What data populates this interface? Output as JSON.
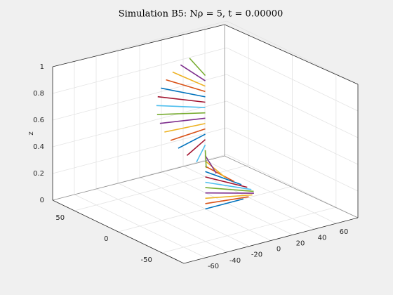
{
  "chart_data": {
    "type": "line3d",
    "title": "Simulation B5:  Nρ = 5, t = 0.00000",
    "zlabel": "z",
    "xlim": [
      -80,
      80
    ],
    "ylim": [
      -75,
      75
    ],
    "zlim": [
      0,
      1
    ],
    "xticks": [
      -60,
      -40,
      -20,
      0,
      20,
      40,
      60
    ],
    "yticks": [
      -50,
      0,
      50
    ],
    "zticks": [
      0,
      0.2,
      0.4,
      0.6,
      0.8,
      1
    ],
    "grid": true,
    "colors": [
      "#0072bd",
      "#d95319",
      "#edb120",
      "#7e2f8e",
      "#77ac30",
      "#4dbeee",
      "#a2142f"
    ],
    "ribbon": {
      "z": [
        0,
        0.04,
        0.08,
        0.12,
        0.16,
        0.2,
        0.24,
        0.28,
        0.32,
        0.36,
        0.4,
        0.44,
        0.48,
        0.52,
        0.56,
        0.6,
        0.64,
        0.68,
        0.72,
        0.76,
        0.8,
        0.84,
        0.88,
        0.92,
        0.96,
        1
      ],
      "x": [
        35,
        34.3,
        32.2,
        28.7,
        24.2,
        18.5,
        12.2,
        5.4,
        -1.7,
        -8.7,
        -15.3,
        -21.4,
        -26.5,
        -30.6,
        -33.4,
        -34.8,
        -34.8,
        -33.4,
        -30.7,
        -26.7,
        -21.5,
        -15.6,
        -8.9,
        -2,
        5.1,
        12
      ],
      "y": [
        0,
        -7,
        -13.8,
        -20,
        -25.3,
        -29.7,
        -32.8,
        -34.6,
        -35,
        -33.9,
        -31.5,
        -27.7,
        -22.9,
        -17.1,
        -10.6,
        -3.7,
        3.4,
        10.3,
        16.9,
        22.7,
        27.6,
        31.3,
        33.8,
        34.9,
        34.6,
        32.9
      ]
    }
  }
}
